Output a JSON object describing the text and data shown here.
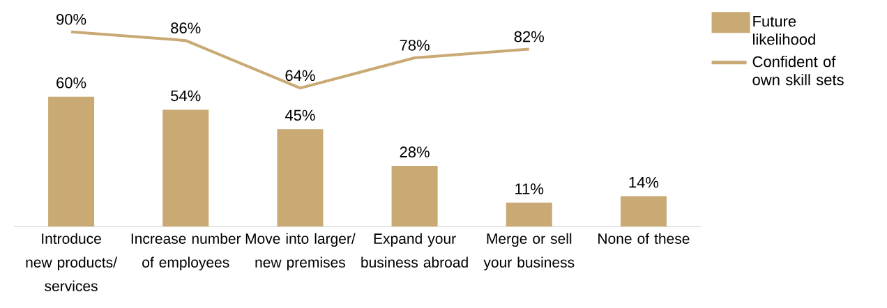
{
  "chart_data": {
    "type": "bar",
    "categories": [
      "Introduce new products/ services",
      "Increase number of employees",
      "Move into larger/ new premises",
      "Expand your business abroad",
      "Merge or sell your business",
      "None of these"
    ],
    "series": [
      {
        "name": "Future likelihood",
        "color": "#c9a974",
        "values": [
          60,
          54,
          45,
          28,
          11,
          14
        ],
        "value_labels": [
          "60%",
          "54%",
          "45%",
          "28%",
          "11%",
          "14%"
        ]
      },
      {
        "name": "Confident of own skill sets",
        "type": "line",
        "color": "#c9a974",
        "values": [
          90,
          86,
          64,
          78,
          82,
          null
        ],
        "value_labels": [
          "90%",
          "86%",
          "64%",
          "78%",
          "82%",
          null
        ]
      }
    ],
    "tick_labels": "x",
    "legend": "right",
    "grid": false,
    "marker": "none",
    "line_style": "solid"
  }
}
